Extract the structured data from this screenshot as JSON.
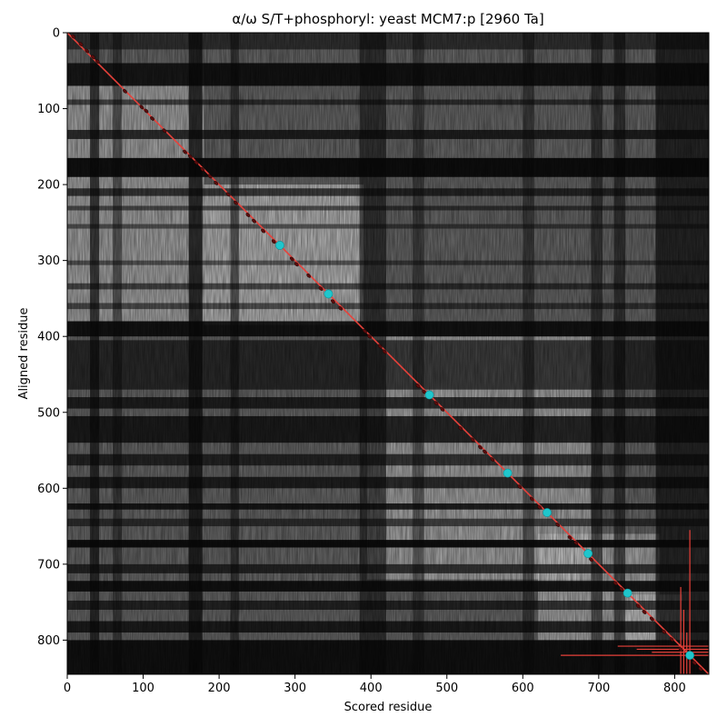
{
  "chart_data": {
    "type": "heatmap",
    "title": "α/ω S/T+phosphoryl: yeast MCM7:p [2960 Ta]",
    "xlabel": "Scored residue",
    "ylabel": "Aligned residue",
    "xlim": [
      0,
      845
    ],
    "ylim": [
      845,
      0
    ],
    "xticks": [
      0,
      100,
      200,
      300,
      400,
      500,
      600,
      700,
      800
    ],
    "yticks": [
      0,
      100,
      200,
      300,
      400,
      500,
      600,
      700,
      800
    ],
    "xtick_labels": [
      "0",
      "100",
      "200",
      "300",
      "400",
      "500",
      "600",
      "700",
      "800"
    ],
    "ytick_labels": [
      "0",
      "100",
      "200",
      "300",
      "400",
      "500",
      "600",
      "700",
      "800"
    ],
    "colormap": "grayscale",
    "diagonal_line": {
      "from": [
        0,
        0
      ],
      "to": [
        845,
        845
      ],
      "color": "#e8413a"
    },
    "dark_bands_y": [
      [
        0,
        22,
        0.55
      ],
      [
        40,
        70,
        0.9
      ],
      [
        88,
        95,
        0.6
      ],
      [
        128,
        140,
        0.75
      ],
      [
        165,
        190,
        0.95
      ],
      [
        205,
        215,
        0.7
      ],
      [
        228,
        234,
        0.55
      ],
      [
        252,
        258,
        0.5
      ],
      [
        300,
        306,
        0.5
      ],
      [
        330,
        338,
        0.6
      ],
      [
        356,
        364,
        0.55
      ],
      [
        380,
        400,
        0.9
      ],
      [
        405,
        470,
        0.65
      ],
      [
        480,
        495,
        0.75
      ],
      [
        505,
        540,
        0.8
      ],
      [
        555,
        570,
        0.7
      ],
      [
        585,
        600,
        0.75
      ],
      [
        620,
        628,
        0.85
      ],
      [
        640,
        650,
        0.6
      ],
      [
        668,
        678,
        0.95
      ],
      [
        700,
        712,
        0.7
      ],
      [
        722,
        736,
        0.9
      ],
      [
        748,
        760,
        0.7
      ],
      [
        775,
        790,
        0.8
      ],
      [
        800,
        845,
        0.92
      ]
    ],
    "dark_bands_x": [
      [
        30,
        42,
        0.7
      ],
      [
        60,
        72,
        0.5
      ],
      [
        160,
        178,
        0.8
      ],
      [
        215,
        226,
        0.55
      ],
      [
        385,
        420,
        0.6
      ],
      [
        455,
        470,
        0.45
      ],
      [
        600,
        615,
        0.5
      ],
      [
        690,
        705,
        0.55
      ],
      [
        720,
        735,
        0.6
      ],
      [
        775,
        845,
        0.75
      ]
    ],
    "light_blocks": [
      [
        0,
        180,
        40,
        380,
        0.55
      ],
      [
        180,
        390,
        200,
        385,
        0.7
      ],
      [
        395,
        690,
        400,
        720,
        0.55
      ],
      [
        620,
        780,
        660,
        800,
        0.55
      ],
      [
        730,
        810,
        740,
        800,
        0.6
      ]
    ],
    "alignment_points": [
      [
        8,
        5
      ],
      [
        18,
        15
      ],
      [
        26,
        24
      ],
      [
        34,
        32
      ],
      [
        40,
        38
      ],
      [
        76,
        77
      ],
      [
        98,
        98
      ],
      [
        104,
        103
      ],
      [
        112,
        113
      ],
      [
        128,
        129
      ],
      [
        155,
        157
      ],
      [
        162,
        163
      ],
      [
        170,
        171
      ],
      [
        178,
        180
      ],
      [
        188,
        189
      ],
      [
        196,
        198
      ],
      [
        212,
        213
      ],
      [
        222,
        224
      ],
      [
        238,
        240
      ],
      [
        246,
        248
      ],
      [
        258,
        261
      ],
      [
        272,
        275
      ],
      [
        296,
        298
      ],
      [
        302,
        305
      ],
      [
        318,
        320
      ],
      [
        334,
        337
      ],
      [
        350,
        354
      ],
      [
        360,
        363
      ],
      [
        392,
        393
      ],
      [
        398,
        400
      ],
      [
        412,
        413
      ],
      [
        418,
        420
      ],
      [
        462,
        465
      ],
      [
        470,
        473
      ],
      [
        486,
        488
      ],
      [
        494,
        496
      ],
      [
        518,
        521
      ],
      [
        534,
        536
      ],
      [
        544,
        546
      ],
      [
        550,
        552
      ],
      [
        560,
        562
      ],
      [
        596,
        598
      ],
      [
        612,
        614
      ],
      [
        622,
        625
      ],
      [
        646,
        648
      ],
      [
        662,
        665
      ],
      [
        670,
        672
      ],
      [
        690,
        694
      ],
      [
        722,
        725
      ],
      [
        730,
        733
      ],
      [
        752,
        755
      ],
      [
        760,
        763
      ],
      [
        770,
        772
      ],
      [
        786,
        789
      ],
      [
        796,
        799
      ],
      [
        808,
        812
      ],
      [
        826,
        830
      ],
      [
        834,
        838
      ]
    ],
    "highlight_points": [
      [
        280,
        280
      ],
      [
        344,
        344
      ],
      [
        477,
        477
      ],
      [
        580,
        580
      ],
      [
        632,
        632
      ],
      [
        686,
        686
      ],
      [
        738,
        738
      ],
      [
        820,
        820
      ]
    ],
    "error_bars": [
      {
        "cx": 820,
        "cy": 820,
        "x0": 650,
        "x1": 845,
        "y0": 655,
        "y1": 845
      },
      {
        "cx": 808,
        "cy": 808,
        "x0": 725,
        "x1": 845,
        "y0": 730,
        "y1": 845
      },
      {
        "cx": 812,
        "cy": 812,
        "x0": 750,
        "x1": 845,
        "y0": 760,
        "y1": 845
      },
      {
        "cx": 816,
        "cy": 816,
        "x0": 770,
        "x1": 845,
        "y0": 790,
        "y1": 845
      }
    ]
  }
}
